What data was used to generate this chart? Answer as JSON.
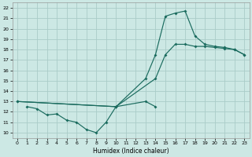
{
  "bg_color": "#cce8e4",
  "grid_color": "#aaccc8",
  "line_color": "#1a6b5e",
  "xlabel": "Humidex (Indice chaleur)",
  "xlim": [
    -0.5,
    23.5
  ],
  "ylim": [
    9.5,
    22.5
  ],
  "xticks": [
    0,
    1,
    2,
    3,
    4,
    5,
    6,
    7,
    8,
    9,
    10,
    11,
    12,
    13,
    14,
    15,
    16,
    17,
    18,
    19,
    20,
    21,
    22,
    23
  ],
  "yticks": [
    10,
    11,
    12,
    13,
    14,
    15,
    16,
    17,
    18,
    19,
    20,
    21,
    22
  ],
  "curve_upper_x": [
    0,
    10,
    13,
    14,
    15,
    16,
    17,
    18,
    19,
    20,
    21,
    22,
    23
  ],
  "curve_upper_y": [
    13.0,
    12.5,
    15.2,
    17.5,
    21.2,
    21.5,
    21.7,
    19.3,
    18.5,
    18.3,
    18.2,
    18.0,
    17.5
  ],
  "curve_mid_x": [
    0,
    10,
    14,
    15,
    16,
    17,
    18,
    19,
    20,
    21,
    22,
    23
  ],
  "curve_mid_y": [
    13.0,
    12.5,
    15.2,
    17.5,
    18.5,
    18.5,
    18.3,
    18.3,
    18.2,
    18.1,
    18.0,
    17.5
  ],
  "curve_low_x": [
    1,
    2,
    3,
    4,
    5,
    6,
    7,
    8,
    9,
    10,
    13,
    14
  ],
  "curve_low_y": [
    12.5,
    12.3,
    11.7,
    11.8,
    11.2,
    11.0,
    10.3,
    10.0,
    11.0,
    12.5,
    13.0,
    12.5
  ]
}
